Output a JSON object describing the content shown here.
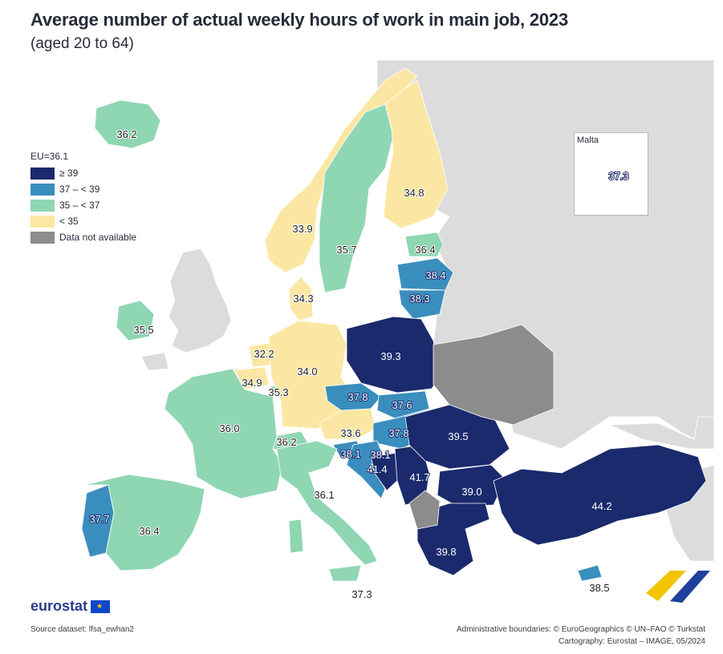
{
  "header": {
    "title": "Average number of actual weekly hours of work in main job, 2023",
    "subtitle": "(aged 20 to 64)"
  },
  "legend": {
    "title": "EU=36.1",
    "items": [
      {
        "label": "≥ 39",
        "color": "#1a2a6c"
      },
      {
        "label": "37 – < 39",
        "color": "#3a8ebd"
      },
      {
        "label": "35 – < 37",
        "color": "#8fd6b3"
      },
      {
        "label": "< 35",
        "color": "#fbe7a3"
      },
      {
        "label": "Data not available",
        "color": "#8c8c8c"
      }
    ]
  },
  "colors": {
    "non_eu_land": "#dcdcdc",
    "sea": "#ffffff",
    "class_ge39": "#1a2a6c",
    "class_37_39": "#3a8ebd",
    "class_35_37": "#8fd6b3",
    "class_lt35": "#fbe7a3",
    "no_data": "#8c8c8c"
  },
  "inset": {
    "title": "Malta",
    "value": "37.3"
  },
  "countries": [
    {
      "name": "Iceland",
      "value": "36.2",
      "class": "class_35_37"
    },
    {
      "name": "Norway",
      "value": "33.9",
      "class": "class_lt35"
    },
    {
      "name": "Sweden",
      "value": "35.7",
      "class": "class_35_37"
    },
    {
      "name": "Finland",
      "value": "34.8",
      "class": "class_lt35"
    },
    {
      "name": "Estonia",
      "value": "36.4",
      "class": "class_35_37"
    },
    {
      "name": "Latvia",
      "value": "38.4",
      "class": "class_37_39"
    },
    {
      "name": "Lithuania",
      "value": "38.3",
      "class": "class_37_39"
    },
    {
      "name": "Denmark",
      "value": "34.3",
      "class": "class_lt35"
    },
    {
      "name": "Ireland",
      "value": "35.5",
      "class": "class_35_37"
    },
    {
      "name": "Netherlands",
      "value": "32.2",
      "class": "class_lt35"
    },
    {
      "name": "Belgium",
      "value": "34.9",
      "class": "class_lt35"
    },
    {
      "name": "Luxembourg",
      "value": "35.3",
      "class": "class_35_37"
    },
    {
      "name": "Germany",
      "value": "34.0",
      "class": "class_lt35"
    },
    {
      "name": "Poland",
      "value": "39.3",
      "class": "class_ge39"
    },
    {
      "name": "Czechia",
      "value": "37.8",
      "class": "class_37_39"
    },
    {
      "name": "Slovakia",
      "value": "37.6",
      "class": "class_37_39"
    },
    {
      "name": "Austria",
      "value": "33.6",
      "class": "class_lt35"
    },
    {
      "name": "Hungary",
      "value": "37.8",
      "class": "class_37_39"
    },
    {
      "name": "Switzerland",
      "value": "36.2",
      "class": "class_35_37"
    },
    {
      "name": "France",
      "value": "36.0",
      "class": "class_35_37"
    },
    {
      "name": "Slovenia",
      "value": "38.1",
      "class": "class_37_39"
    },
    {
      "name": "Croatia",
      "value": "38.1",
      "class": "class_37_39"
    },
    {
      "name": "Bosnia and Herzegovina",
      "value": "41.4",
      "class": "class_ge39"
    },
    {
      "name": "Serbia",
      "value": "41.7",
      "class": "class_ge39"
    },
    {
      "name": "Romania",
      "value": "39.5",
      "class": "class_ge39"
    },
    {
      "name": "Bulgaria",
      "value": "39.0",
      "class": "class_ge39"
    },
    {
      "name": "Italy",
      "value": "36.1",
      "class": "class_35_37"
    },
    {
      "name": "Portugal",
      "value": "37.7",
      "class": "class_37_39"
    },
    {
      "name": "Spain",
      "value": "36.4",
      "class": "class_35_37"
    },
    {
      "name": "Greece",
      "value": "39.8",
      "class": "class_ge39"
    },
    {
      "name": "Türkiye",
      "value": "44.2",
      "class": "class_ge39"
    },
    {
      "name": "Malta (south label)",
      "value": "37.3",
      "class": "class_37_39"
    },
    {
      "name": "Cyprus",
      "value": "38.5",
      "class": "class_37_39"
    }
  ],
  "footer": {
    "logo_text": "eurostat",
    "source": "Source dataset: lfsa_ewhan2",
    "boundaries": "Administrative boundaries: © EuroGeographics © UN–FAO © Turkstat",
    "cartography": "Cartography: Eurostat – IMAGE, 05/2024"
  }
}
